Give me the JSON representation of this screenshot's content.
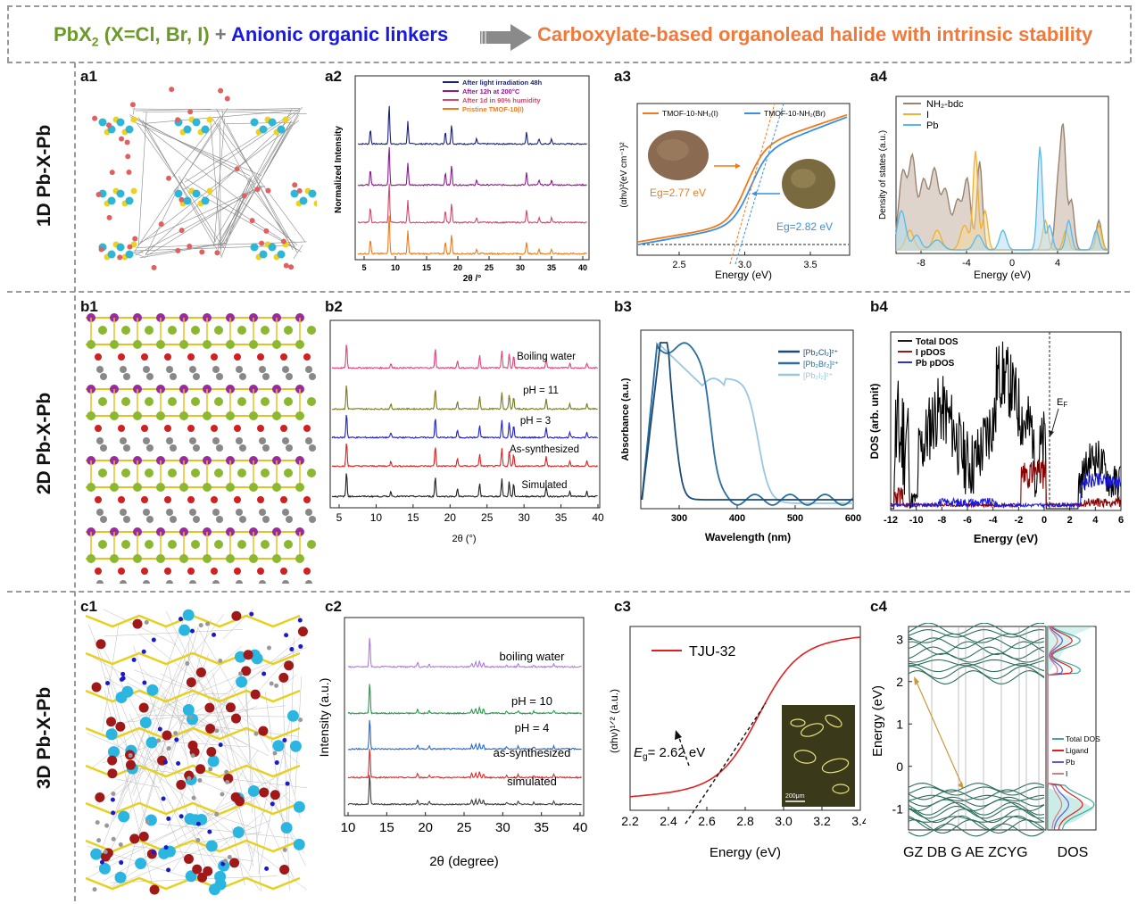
{
  "header": {
    "reactant_pre": "PbX",
    "reactant_sub": "2",
    "reactant_post": " (X=Cl, Br, I)",
    "plus": " + ",
    "linker": "Anionic organic linkers",
    "product": "Carboxylate-based organolead halide with intrinsic stability",
    "colors": {
      "green": "#6b9a2a",
      "blue": "#1a1adc",
      "orange": "#f07a3c",
      "arrow": "#888888"
    }
  },
  "rows": [
    {
      "label": "1D Pb-X-Pb"
    },
    {
      "label": "2D Pb-X-Pb"
    },
    {
      "label": "3D Pb-X-Pb"
    }
  ],
  "panels": {
    "a1": "a1",
    "a2": "a2",
    "a3": "a3",
    "a4": "a4",
    "b1": "b1",
    "b2": "b2",
    "b3": "b3",
    "b4": "b4",
    "c1": "c1",
    "c2": "c2",
    "c3": "c3",
    "c4": "c4"
  },
  "a2": {
    "ylabel": "Normalized Intensity",
    "xlabel": "2θ /°",
    "xticks": [
      "5",
      "10",
      "15",
      "20",
      "25",
      "30",
      "35",
      "40"
    ],
    "legend": [
      {
        "text": "After light irradiation 48h",
        "color": "#1a237e"
      },
      {
        "text": "After 12h at 200°C",
        "color": "#8e1a8e"
      },
      {
        "text": "After 1d in 90% humidity",
        "color": "#d04a6a"
      },
      {
        "text": "Pristine TMOF-10(I)",
        "color": "#f07a1a"
      }
    ]
  },
  "a3": {
    "ylabel": "(αhν)²(eV cm⁻¹)²",
    "xlabel": "Energy (eV)",
    "xticks": [
      "2.5",
      "3.0",
      "3.5"
    ],
    "legend": [
      {
        "text": "TMOF-10-NH₂(I)",
        "color": "#f07a1a"
      },
      {
        "text": "TMOF-10-NH₂(Br)",
        "color": "#3a8fe0"
      }
    ],
    "eg1": "Eg=2.77 eV",
    "eg2": "Eg=2.82 eV"
  },
  "a4": {
    "ylabel": "Density of states (a.u.)",
    "xlabel": "Energy (eV)",
    "xticks": [
      "-8",
      "-4",
      "0",
      "4"
    ],
    "legend": [
      {
        "text": "NH₂-bdc",
        "color": "#9a8470"
      },
      {
        "text": "I",
        "color": "#f0b030"
      },
      {
        "text": "Pb",
        "color": "#5ab8e8"
      }
    ]
  },
  "b2": {
    "ylabel": "",
    "xlabel": "2θ (°)",
    "xticks": [
      "5",
      "10",
      "15",
      "20",
      "25",
      "30",
      "35",
      "40"
    ],
    "labels": [
      "Boiling water",
      "pH = 11",
      "pH = 3",
      "As-synthesized",
      "Simulated"
    ],
    "colors": [
      "#e8407a",
      "#7a7a20",
      "#2020d8",
      "#e02020",
      "#202020"
    ]
  },
  "b3": {
    "ylabel": "Absorbance (a.u.)",
    "xlabel": "Wavelength (nm)",
    "xticks": [
      "300",
      "400",
      "500",
      "600"
    ],
    "legend": [
      {
        "text": "[Pb₂Cl₂]²⁺",
        "color": "#1e4a78"
      },
      {
        "text": "[Pb₂Br₂]²⁺",
        "color": "#2a6fa0"
      },
      {
        "text": "[Pb₂I₂]²⁺",
        "color": "#9ac6e0"
      }
    ]
  },
  "b4": {
    "ylabel": "DOS (arb. unit)",
    "xlabel": "Energy (eV)",
    "xticks": [
      "-12",
      "-10",
      "-8",
      "-6",
      "-4",
      "-2",
      "0",
      "2",
      "4",
      "6"
    ],
    "legend": [
      {
        "text": "Total DOS",
        "color": "#000000"
      },
      {
        "text": "I pDOS",
        "color": "#8b0000"
      },
      {
        "text": "Pb pDOS",
        "color": "#1a1adc"
      }
    ],
    "ef": "EF"
  },
  "c2": {
    "ylabel": "Intensity (a.u.)",
    "xlabel": "2θ (degree)",
    "xticks": [
      "10",
      "15",
      "20",
      "25",
      "30",
      "35",
      "40"
    ],
    "labels": [
      "boiling water",
      "pH = 10",
      "pH = 4",
      "as-synthesized",
      "simulated"
    ],
    "colors": [
      "#b07ae0",
      "#2a9a4a",
      "#2a6ad0",
      "#e02a2a",
      "#404040"
    ]
  },
  "c3": {
    "ylabel": "(αhν)¹ᐟ² (a.u.)",
    "xlabel": "Energy (eV)",
    "xticks": [
      "2.2",
      "2.4",
      "2.6",
      "2.8",
      "3.0",
      "3.2",
      "3.4"
    ],
    "legend": "TJU-32",
    "eg": "Eg= 2.62 eV",
    "scale": "200μm"
  },
  "c4": {
    "ylabel": "Energy (eV)",
    "xlabel_left": "GZ DB G AE ZCYG",
    "xlabel_right": "DOS",
    "yticks": [
      "3",
      "2",
      "1",
      "0",
      "-1"
    ],
    "legend": [
      {
        "text": "Total DOS",
        "color": "#3aaaa0"
      },
      {
        "text": "Ligand",
        "color": "#e02020"
      },
      {
        "text": "Pb",
        "color": "#5a5ae0"
      },
      {
        "text": "I",
        "color": "#d08080"
      }
    ]
  }
}
